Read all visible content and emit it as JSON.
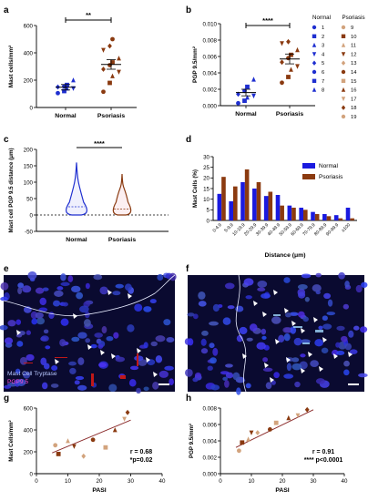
{
  "panel_labels": [
    "a",
    "b",
    "c",
    "d",
    "e",
    "f",
    "g",
    "h"
  ],
  "legend": {
    "normal_title": "Normal",
    "psoriasis_title": "Psoriasis",
    "normal_ids": [
      "1",
      "2",
      "3",
      "4",
      "5",
      "6",
      "7",
      "8"
    ],
    "psoriasis_ids": [
      "9",
      "10",
      "11",
      "12",
      "13",
      "14",
      "15",
      "16",
      "17",
      "18",
      "19"
    ],
    "normal_symbols": [
      "circle",
      "square",
      "triangle",
      "triangle-down",
      "diamond",
      "circle",
      "square",
      "triangle"
    ],
    "psoriasis_symbols": [
      "circle",
      "square",
      "triangle",
      "triangle-down",
      "diamond",
      "circle",
      "square",
      "triangle",
      "triangle-down",
      "diamond",
      "circle"
    ]
  },
  "colors": {
    "normal": "#1f2fd0",
    "psoriasis": "#8a3a10",
    "psoriasis_light": "#d2a37d",
    "bar_normal": "#1a1adf",
    "bar_psoriasis": "#8b3a0f",
    "mc_label": "#b8c8ff",
    "pgp_label": "#ff4fd8",
    "tissue": "#0a0a30"
  },
  "micro": {
    "e_label_line1": "Mast Cell Tryptase",
    "e_label_line2": "PGP9.5"
  },
  "chart_data": [
    {
      "panel": "a",
      "type": "scatter",
      "ylabel": "Mast cells/mm²",
      "categories": [
        "Normal",
        "Psoriasis"
      ],
      "ylim": [
        0,
        600
      ],
      "yticks": [
        "0",
        "200",
        "400",
        "600"
      ],
      "series": [
        {
          "name": "Normal",
          "values": [
            105,
            120,
            140,
            140,
            150,
            155,
            165,
            200
          ],
          "mean": 148,
          "sem": 20
        },
        {
          "name": "Psoriasis",
          "values": [
            115,
            180,
            230,
            260,
            280,
            310,
            330,
            360,
            420,
            450,
            500
          ],
          "mean": 315,
          "sem": 35
        }
      ],
      "significance": "**"
    },
    {
      "panel": "b",
      "type": "scatter",
      "ylabel": "PGP 9.5/mm²",
      "categories": [
        "Normal",
        "Psoriasis"
      ],
      "ylim": [
        0,
        0.01
      ],
      "yticks": [
        "0.000",
        "0.002",
        "0.004",
        "0.006",
        "0.008",
        "0.010"
      ],
      "series": [
        {
          "name": "Normal",
          "values": [
            0.0003,
            0.0006,
            0.001,
            0.0012,
            0.0014,
            0.0018,
            0.0023,
            0.0032
          ],
          "mean": 0.0016,
          "sem": 0.0004
        },
        {
          "name": "Psoriasis",
          "values": [
            0.0028,
            0.0035,
            0.0044,
            0.0048,
            0.0053,
            0.0058,
            0.0062,
            0.0068,
            0.0076,
            0.0078
          ],
          "mean": 0.0057,
          "sem": 0.0006
        }
      ],
      "significance": "****"
    },
    {
      "panel": "c",
      "type": "violin",
      "ylabel": "Mast cell PGP 9.5 distance (μm)",
      "categories": [
        "Normal",
        "Psoriasis"
      ],
      "ylim": [
        -50,
        200
      ],
      "yticks": [
        "-50",
        "0",
        "50",
        "100",
        "150",
        "200"
      ],
      "series": [
        {
          "name": "Normal",
          "max": 160,
          "median": 25
        },
        {
          "name": "Psoriasis",
          "max": 125,
          "median": 18
        }
      ],
      "significance": "****"
    },
    {
      "panel": "d",
      "type": "bar",
      "xlabel": "Distance (μm)",
      "ylabel": "Mast Cells (%)",
      "ylim": [
        0,
        30
      ],
      "yticks": [
        "0",
        "5",
        "10",
        "15",
        "20",
        "25",
        "30"
      ],
      "legend_position": "top-right",
      "categories": [
        "0-4.9",
        "5-9.9",
        "10-19.9",
        "20-29.9",
        "30-39.9",
        "40-49.9",
        "50-59.9",
        "60-69.9",
        "70-79.9",
        "80-89.9",
        "90-99.9",
        "≥100"
      ],
      "series": [
        {
          "name": "Normal",
          "values": [
            12.5,
            9,
            18,
            15,
            11.5,
            12,
            7,
            6,
            4,
            3,
            2.5,
            6
          ]
        },
        {
          "name": "Psoriasis",
          "values": [
            20.5,
            16,
            24,
            18,
            13.5,
            7,
            6,
            5,
            3,
            2,
            1,
            1
          ]
        }
      ]
    },
    {
      "panel": "g",
      "type": "scatter",
      "xlabel": "PASI",
      "ylabel": "Mast Cells/mm²",
      "xlim": [
        0,
        40
      ],
      "ylim": [
        0,
        600
      ],
      "xticks": [
        "0",
        "10",
        "20",
        "30",
        "40"
      ],
      "yticks": [
        "0",
        "200",
        "400",
        "600"
      ],
      "x": [
        6,
        7,
        10,
        12,
        15,
        18,
        22,
        25,
        28,
        29
      ],
      "y": [
        260,
        180,
        300,
        250,
        160,
        310,
        240,
        400,
        500,
        560
      ],
      "fit": [
        [
          5,
          190
        ],
        [
          30,
          490
        ]
      ],
      "annotation": [
        "r = 0.68",
        "*p=0.02"
      ]
    },
    {
      "panel": "h",
      "type": "scatter",
      "xlabel": "PASI",
      "ylabel": "PGP 9.5/mm²",
      "xlim": [
        0,
        40
      ],
      "ylim": [
        0,
        0.008
      ],
      "xticks": [
        "0",
        "10",
        "20",
        "30",
        "40"
      ],
      "yticks": [
        "0.000",
        "0.002",
        "0.004",
        "0.006",
        "0.008"
      ],
      "x": [
        6,
        7,
        9,
        10,
        12,
        16,
        18,
        22,
        25,
        28
      ],
      "y": [
        0.0028,
        0.0038,
        0.0042,
        0.005,
        0.005,
        0.0054,
        0.0062,
        0.0068,
        0.0071,
        0.0078
      ],
      "fit": [
        [
          5,
          0.0032
        ],
        [
          30,
          0.0078
        ]
      ],
      "annotation": [
        "r = 0.91",
        "**** p<0.0001"
      ]
    }
  ]
}
